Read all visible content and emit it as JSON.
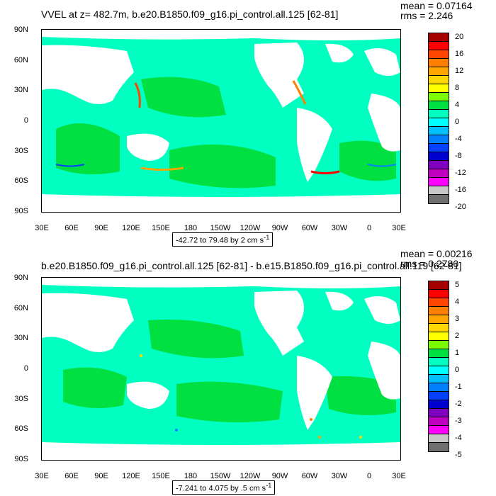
{
  "top": {
    "title": "VVEL at z= 482.7m, b.e20.B1850.f09_g16.pi_control.all.125 [62-81]",
    "mean": "mean = 0.07164",
    "rms": "rms = 2.246",
    "range": "-42.72 to 79.48 by 2 cm s",
    "range_sup": "-1",
    "legend_labels": [
      "20",
      "16",
      "12",
      "8",
      "4",
      "0",
      "-4",
      "-8",
      "-12",
      "-16",
      "-20"
    ],
    "colors": [
      "#a50000",
      "#ff0000",
      "#ff4500",
      "#ff7f00",
      "#ffa500",
      "#ffd700",
      "#ffff00",
      "#7cfc00",
      "#00e040",
      "#00ffc0",
      "#00ffff",
      "#00bfff",
      "#0080ff",
      "#0040ff",
      "#0000d0",
      "#8000c0",
      "#c000c0",
      "#ff00ff",
      "#c8c8c8",
      "#707070"
    ]
  },
  "bottom": {
    "title": "b.e20.B1850.f09_g16.pi_control.all.125 [62-81] - b.e15.B1850.f09_g16.pi_control.all.119 [62-81]",
    "mean": "mean = 0.00216",
    "rms": "rms = 0.2780",
    "range": "-7.241 to 4.075 by .5 cm s",
    "range_sup": "-1",
    "legend_labels": [
      "5",
      "4",
      "3",
      "2",
      "1",
      "0",
      "-1",
      "-2",
      "-3",
      "-4",
      "-5"
    ],
    "colors": [
      "#a50000",
      "#ff0000",
      "#ff4500",
      "#ff7f00",
      "#ffa500",
      "#ffd700",
      "#ffff00",
      "#7cfc00",
      "#00e040",
      "#00ffc0",
      "#00ffff",
      "#00bfff",
      "#0080ff",
      "#0040ff",
      "#0000d0",
      "#8000c0",
      "#c000c0",
      "#ff00ff",
      "#c8c8c8",
      "#707070"
    ]
  },
  "axes": {
    "lat_labels": [
      "90N",
      "60N",
      "30N",
      "0",
      "30S",
      "60S",
      "90S"
    ],
    "lon_labels": [
      "30E",
      "60E",
      "90E",
      "120E",
      "150E",
      "180",
      "150W",
      "120W",
      "90W",
      "60W",
      "30W",
      "0",
      "30E"
    ]
  },
  "map": {
    "ocean_base": "#00ffc0",
    "ocean_alt": "#00e040",
    "land": "#ffffff"
  }
}
